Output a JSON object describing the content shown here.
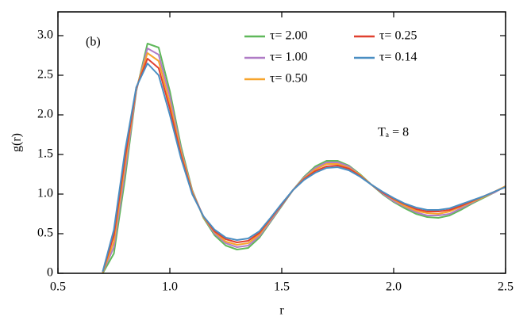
{
  "chart_data": {
    "type": "line",
    "xlabel": "r",
    "ylabel": "g(r)",
    "annotations": [
      "(b)",
      "Tₐ = 8"
    ],
    "x": [
      0.7,
      0.75,
      0.8,
      0.85,
      0.9,
      0.95,
      1.0,
      1.05,
      1.1,
      1.15,
      1.2,
      1.25,
      1.3,
      1.35,
      1.4,
      1.45,
      1.5,
      1.55,
      1.6,
      1.65,
      1.7,
      1.75,
      1.8,
      1.85,
      1.9,
      1.95,
      2.0,
      2.05,
      2.1,
      2.15,
      2.2,
      2.25,
      2.3,
      2.35,
      2.4,
      2.45,
      2.5
    ],
    "series": [
      {
        "name": "τ= 2.00",
        "color": "#5fb85a",
        "values": [
          0,
          0.25,
          1.2,
          2.3,
          2.9,
          2.85,
          2.3,
          1.6,
          1.05,
          0.7,
          0.48,
          0.35,
          0.3,
          0.32,
          0.45,
          0.65,
          0.85,
          1.05,
          1.22,
          1.35,
          1.42,
          1.42,
          1.36,
          1.25,
          1.12,
          1.0,
          0.9,
          0.82,
          0.75,
          0.71,
          0.7,
          0.73,
          0.8,
          0.88,
          0.95,
          1.02,
          1.1
        ]
      },
      {
        "name": "τ= 1.00",
        "color": "#b07cc6",
        "values": [
          0.01,
          0.33,
          1.29,
          2.31,
          2.84,
          2.76,
          2.23,
          1.56,
          1.04,
          0.71,
          0.5,
          0.38,
          0.33,
          0.35,
          0.47,
          0.66,
          0.86,
          1.05,
          1.21,
          1.33,
          1.4,
          1.4,
          1.35,
          1.24,
          1.12,
          1.01,
          0.91,
          0.84,
          0.77,
          0.73,
          0.73,
          0.75,
          0.82,
          0.89,
          0.96,
          1.02,
          1.1
        ]
      },
      {
        "name": "τ= 0.50",
        "color": "#f7a42c",
        "values": [
          0.01,
          0.4,
          1.38,
          2.33,
          2.78,
          2.68,
          2.15,
          1.53,
          1.03,
          0.71,
          0.52,
          0.4,
          0.36,
          0.38,
          0.49,
          0.68,
          0.87,
          1.05,
          1.2,
          1.31,
          1.38,
          1.38,
          1.33,
          1.24,
          1.12,
          1.02,
          0.93,
          0.85,
          0.79,
          0.76,
          0.75,
          0.78,
          0.84,
          0.9,
          0.96,
          1.03,
          1.1
        ]
      },
      {
        "name": "τ= 0.25",
        "color": "#e0402f",
        "values": [
          0.02,
          0.48,
          1.46,
          2.34,
          2.71,
          2.59,
          2.08,
          1.49,
          1.01,
          0.72,
          0.53,
          0.43,
          0.39,
          0.41,
          0.51,
          0.69,
          0.87,
          1.05,
          1.19,
          1.29,
          1.35,
          1.36,
          1.32,
          1.23,
          1.12,
          1.02,
          0.94,
          0.87,
          0.81,
          0.78,
          0.78,
          0.8,
          0.85,
          0.91,
          0.97,
          1.03,
          1.09
        ]
      },
      {
        "name": "τ= 0.14",
        "color": "#4a8ec2",
        "values": [
          0.02,
          0.55,
          1.55,
          2.35,
          2.65,
          2.5,
          2.0,
          1.45,
          1.0,
          0.72,
          0.55,
          0.45,
          0.42,
          0.44,
          0.53,
          0.7,
          0.88,
          1.05,
          1.18,
          1.27,
          1.33,
          1.34,
          1.3,
          1.22,
          1.12,
          1.03,
          0.95,
          0.88,
          0.83,
          0.8,
          0.8,
          0.82,
          0.87,
          0.92,
          0.97,
          1.03,
          1.09
        ]
      }
    ],
    "xlim": [
      0.5,
      2.5
    ],
    "xticks": [
      {
        "value": 0.5,
        "label": "0.5"
      },
      {
        "value": 1.0,
        "label": "1.0"
      },
      {
        "value": 1.5,
        "label": "1.5"
      },
      {
        "value": 2.0,
        "label": "2.0"
      },
      {
        "value": 2.5,
        "label": "2.5"
      }
    ],
    "ylim": [
      0,
      3.3
    ],
    "yticks": [
      0,
      {
        "value": 0.5,
        "label": "0.5"
      },
      {
        "value": 1.0,
        "label": "1.0"
      },
      {
        "value": 1.5,
        "label": "1.5"
      },
      {
        "value": 2.0,
        "label": "2.0"
      },
      {
        "value": 2.5,
        "label": "2.5"
      },
      {
        "value": 3.0,
        "label": "3.0"
      }
    ],
    "grid": false
  }
}
